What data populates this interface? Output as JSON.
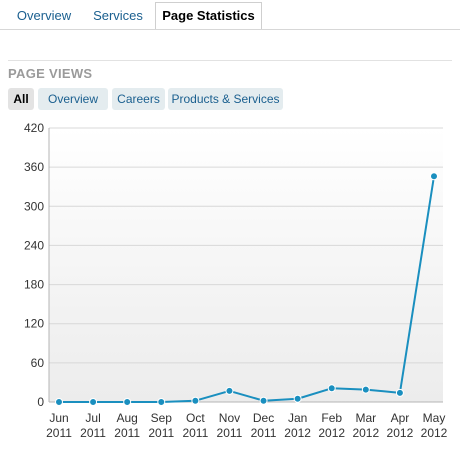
{
  "tabs": [
    {
      "label": "Overview",
      "active": false
    },
    {
      "label": "Services",
      "active": false
    },
    {
      "label": "Page Statistics",
      "active": true
    }
  ],
  "section_title": "PAGE VIEWS",
  "filters": [
    {
      "label": "All",
      "active": true
    },
    {
      "label": "Overview",
      "active": false
    },
    {
      "label": "Careers",
      "active": false
    },
    {
      "label": "Products & Services",
      "active": false
    }
  ],
  "colors": {
    "line": "#1a8fbf",
    "plot_bg_top": "#ffffff",
    "plot_bg_bottom": "#ececec",
    "grid": "#d8d8d8"
  },
  "chart_data": {
    "type": "line",
    "categories": [
      [
        "Jun",
        "2011"
      ],
      [
        "Jul",
        "2011"
      ],
      [
        "Aug",
        "2011"
      ],
      [
        "Sep",
        "2011"
      ],
      [
        "Oct",
        "2011"
      ],
      [
        "Nov",
        "2011"
      ],
      [
        "Dec",
        "2011"
      ],
      [
        "Jan",
        "2012"
      ],
      [
        "Feb",
        "2012"
      ],
      [
        "Mar",
        "2012"
      ],
      [
        "Apr",
        "2012"
      ],
      [
        "May",
        "2012"
      ]
    ],
    "values": [
      0,
      0,
      0,
      0,
      2,
      17,
      2,
      5,
      21,
      19,
      14,
      346
    ],
    "ylim": [
      0,
      420
    ],
    "yticks": [
      0,
      60,
      120,
      180,
      240,
      300,
      360,
      420
    ],
    "grid": true
  }
}
